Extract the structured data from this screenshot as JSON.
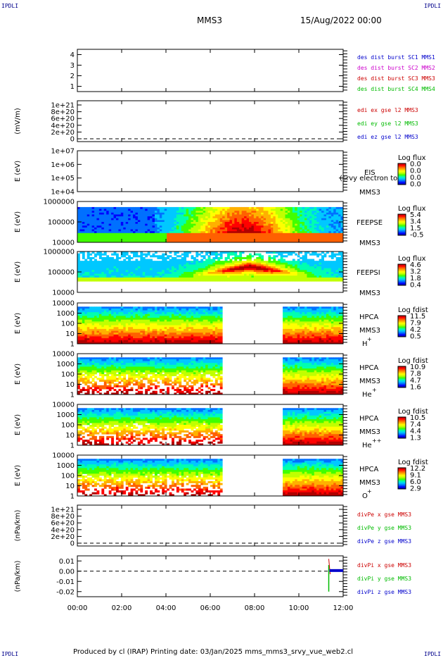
{
  "corner_marks": {
    "tl": "IPDLI",
    "tr": "IPDLI",
    "bl": "IPDLI",
    "br": "IPDLI"
  },
  "header": {
    "spacecraft": "MMS3",
    "datetime": "15/Aug/2022 00:00"
  },
  "footer": {
    "text": "Produced by cl (IRAP)   Printing date: 03/Jan/2025   mms_mms3_srvy_vue_web2.cl"
  },
  "colors": {
    "scale": [
      "#0000a0",
      "#0000ff",
      "#0070ff",
      "#00c8ff",
      "#00ffb0",
      "#40ff00",
      "#c0ff00",
      "#ffff00",
      "#ffb000",
      "#ff6000",
      "#ff0000",
      "#b00000"
    ]
  },
  "chart_data": {
    "type": "heatmap",
    "x_axis": {
      "range": [
        0,
        12
      ],
      "unit": "hours",
      "tick_labels": [
        "00:00",
        "02:00",
        "04:00",
        "06:00",
        "08:00",
        "10:00",
        "12:00"
      ]
    },
    "panels": [
      {
        "id": "burst",
        "type": "line",
        "ylabel": "",
        "ylim": [
          0.5,
          4.5
        ],
        "yticks": [
          "1",
          "2",
          "3",
          "4"
        ],
        "legend": [
          {
            "label": "des dist burst SC1 MMS1",
            "color": "#0000cc"
          },
          {
            "label": "des dist burst SC2 MMS2",
            "color": "#cc00cc"
          },
          {
            "label": "des dist burst SC3 MMS3",
            "color": "#cc0000"
          },
          {
            "label": "des dist burst SC4 MMS4",
            "color": "#00bb00"
          }
        ]
      },
      {
        "id": "edi",
        "type": "line",
        "ylabel": "(mV/m)",
        "yticks": [
          "1e+21",
          "8e+20",
          "6e+20",
          "4e+20",
          "2e+20",
          "0"
        ],
        "dashed_zero": true,
        "legend": [
          {
            "label": "edi ex gse l2 MMS3",
            "color": "#cc0000"
          },
          {
            "label": "edi ey gse l2 MMS3",
            "color": "#00bb00"
          },
          {
            "label": "edi ez gse l2 MMS3",
            "color": "#0000cc"
          }
        ]
      },
      {
        "id": "eis",
        "type": "heatmap",
        "ylabel": "E (eV)",
        "ylim": [
          10000,
          10000000
        ],
        "log": true,
        "yticks": [
          "1e+07",
          "1e+06",
          "1e+05",
          "1e+04"
        ],
        "right_labels": [
          "EIS",
          "MMS3"
        ],
        "overlay_text": "(srvy electron to",
        "colorbar": {
          "title": "Log flux",
          "labels": [
            "0.0",
            "0.0",
            "0.0",
            "0.0"
          ]
        }
      },
      {
        "id": "feepse",
        "type": "heatmap",
        "ylabel": "E (eV)",
        "ylim": [
          10000,
          1000000
        ],
        "log": true,
        "yticks": [
          "1000000",
          "100000",
          "10000"
        ],
        "right_labels": [
          "FEEPSE",
          "MMS3"
        ],
        "colorbar": {
          "title": "Log flux",
          "labels": [
            "5.4",
            "3.4",
            "1.5",
            "-0.5"
          ]
        }
      },
      {
        "id": "feepsi",
        "type": "heatmap",
        "ylabel": "E (eV)",
        "ylim": [
          10000,
          1000000
        ],
        "log": true,
        "yticks": [
          "1000000",
          "100000",
          "10000"
        ],
        "right_labels": [
          "FEEPSI",
          "MMS3"
        ],
        "colorbar": {
          "title": "Log flux",
          "labels": [
            "4.6",
            "3.2",
            "1.8",
            "0.4"
          ]
        }
      },
      {
        "id": "hpca_h",
        "type": "heatmap",
        "ylabel": "E (eV)",
        "ylim": [
          1,
          10000
        ],
        "log": true,
        "yticks": [
          "10000",
          "1000",
          "100",
          "10",
          "1"
        ],
        "right_labels": [
          "HPCA",
          "MMS3"
        ],
        "species": "H",
        "charge": "+",
        "data_gap_hours": [
          6.6,
          9.3
        ],
        "colorbar": {
          "title": "Log fdist",
          "labels": [
            "11.5",
            "7.9",
            "4.2",
            "0.5"
          ]
        }
      },
      {
        "id": "hpca_he",
        "type": "heatmap",
        "ylabel": "E (eV)",
        "ylim": [
          1,
          10000
        ],
        "log": true,
        "yticks": [
          "10000",
          "1000",
          "100",
          "10",
          "1"
        ],
        "right_labels": [
          "HPCA",
          "MMS3"
        ],
        "species": "He",
        "charge": "+",
        "data_gap_hours": [
          6.6,
          9.3
        ],
        "colorbar": {
          "title": "Log fdist",
          "labels": [
            "10.9",
            "7.8",
            "4.7",
            "1.6"
          ]
        }
      },
      {
        "id": "hpca_he2",
        "type": "heatmap",
        "ylabel": "E (eV)",
        "ylim": [
          1,
          10000
        ],
        "log": true,
        "yticks": [
          "10000",
          "1000",
          "100",
          "10",
          "1"
        ],
        "right_labels": [
          "HPCA",
          "MMS3"
        ],
        "species": "He",
        "charge": "++",
        "data_gap_hours": [
          6.6,
          9.3
        ],
        "colorbar": {
          "title": "Log fdist",
          "labels": [
            "10.5",
            "7.4",
            "4.4",
            "1.3"
          ]
        }
      },
      {
        "id": "hpca_o",
        "type": "heatmap",
        "ylabel": "E (eV)",
        "ylim": [
          1,
          10000
        ],
        "log": true,
        "yticks": [
          "10000",
          "1000",
          "100",
          "10",
          "1"
        ],
        "right_labels": [
          "HPCA",
          "MMS3"
        ],
        "species": "O",
        "charge": "+",
        "data_gap_hours": [
          6.6,
          9.3
        ],
        "colorbar": {
          "title": "Log fdist",
          "labels": [
            "12.2",
            "9.1",
            "6.0",
            "2.9"
          ]
        }
      },
      {
        "id": "divpe",
        "type": "line",
        "ylabel": "(nPa/km)",
        "yticks": [
          "1e+21",
          "8e+20",
          "6e+20",
          "4e+20",
          "2e+20",
          "0"
        ],
        "dashed_zero": true,
        "legend": [
          {
            "label": "divPe x gse MMS3",
            "color": "#cc0000"
          },
          {
            "label": "divPe y gse MMS3",
            "color": "#00bb00"
          },
          {
            "label": "divPe z gse MMS3",
            "color": "#0000cc"
          }
        ]
      },
      {
        "id": "divpi",
        "type": "line",
        "ylabel": "(nPa/km)",
        "ylim": [
          -0.025,
          0.015
        ],
        "yticks": [
          "0.01",
          "0.00",
          "-0.01",
          "-0.02"
        ],
        "dashed_zero": true,
        "legend": [
          {
            "label": "divPi x gse MMS3",
            "color": "#cc0000"
          },
          {
            "label": "divPi y gse MMS3",
            "color": "#00bb00"
          },
          {
            "label": "divPi z gse MMS3",
            "color": "#0000cc"
          }
        ],
        "spike": {
          "x": 11.35,
          "ymin": -0.02,
          "ymax": 0.006
        }
      }
    ]
  }
}
